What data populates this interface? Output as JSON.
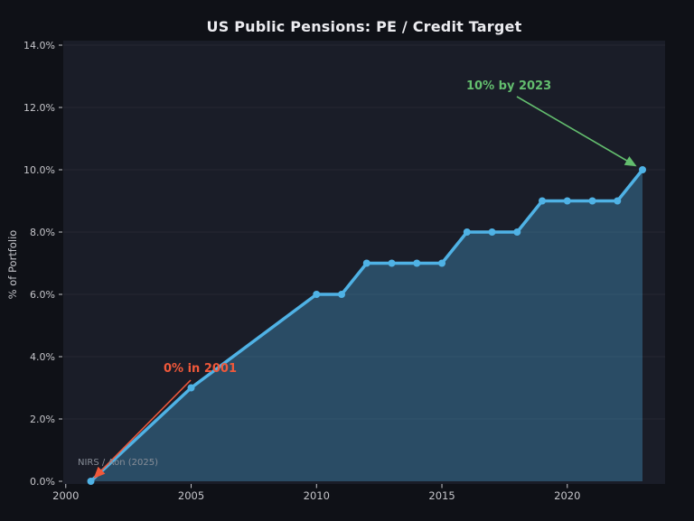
{
  "chart_data": {
    "type": "area",
    "title": "US Public Pensions: PE / Credit Target",
    "xlabel": "",
    "ylabel": "% of Portfolio",
    "x": [
      2001,
      2005,
      2010,
      2011,
      2012,
      2013,
      2014,
      2015,
      2016,
      2017,
      2018,
      2019,
      2020,
      2021,
      2022,
      2023
    ],
    "values": [
      0,
      3,
      6,
      6,
      7,
      7,
      7,
      7,
      8,
      8,
      8,
      9,
      9,
      9,
      9,
      10
    ],
    "xlim": [
      1999.9,
      2023.9
    ],
    "ylim": [
      0,
      14
    ],
    "x_ticks": [
      2000,
      2005,
      2010,
      2015,
      2020
    ],
    "x_tick_labels": [
      "2000",
      "2005",
      "2010",
      "2015",
      "2020"
    ],
    "y_ticks": [
      0,
      2,
      4,
      6,
      8,
      10,
      12,
      14
    ],
    "y_tick_labels": [
      "0.0%",
      "2.0%",
      "4.0%",
      "6.0%",
      "8.0%",
      "10.0%",
      "12.0%",
      "14.0%"
    ],
    "grid": "horizontal",
    "legend": "none",
    "annotations": [
      {
        "text": "10% by 2023",
        "color": "#63bd6e",
        "target": {
          "x": 2023,
          "y": 10
        }
      },
      {
        "text": "0% in 2001",
        "color": "#f0583a",
        "target": {
          "x": 2001,
          "y": 0
        }
      }
    ],
    "source": "NIRS / Aon (2025)",
    "colors": {
      "line": "#4fb2e5",
      "fill": "rgba(79,178,229,0.32)",
      "figure_bg": "#0f1117",
      "plot_bg": "#1a1d28",
      "grid": "rgba(255,255,255,0.05)",
      "tick_text": "#c6c6cb",
      "title_text": "#ececf0",
      "source_text": "#878d97",
      "annotation_green": "#63bd6e",
      "annotation_orange": "#f0583a"
    }
  }
}
